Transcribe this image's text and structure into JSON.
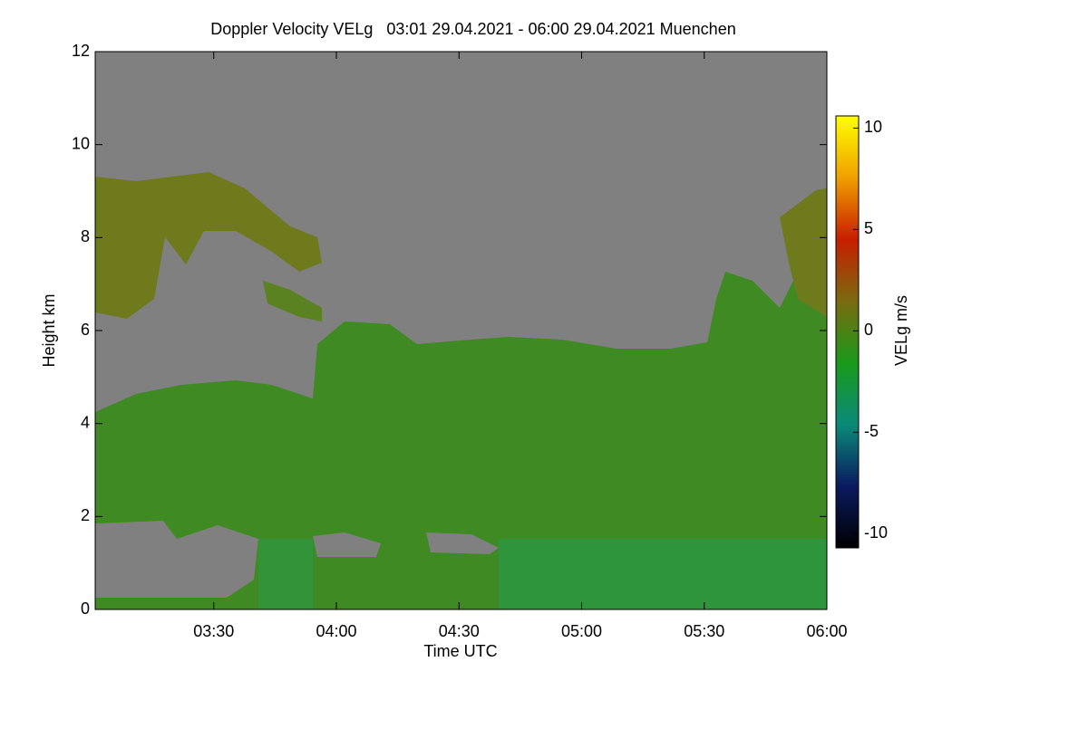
{
  "chart_data": {
    "type": "heatmap",
    "title": "Doppler Velocity VELg   03:01 29.04.2021 - 06:00 29.04.2021 Muenchen",
    "x_label": "Time UTC",
    "y_label": "Height km",
    "colorbar_label": "VELg m/s",
    "xlim": [
      181,
      360
    ],
    "xticks": [
      {
        "value": 210,
        "label": "03:30"
      },
      {
        "value": 240,
        "label": "04:00"
      },
      {
        "value": 270,
        "label": "04:30"
      },
      {
        "value": 300,
        "label": "05:00"
      },
      {
        "value": 330,
        "label": "05:30"
      },
      {
        "value": 360,
        "label": "06:00"
      }
    ],
    "ylim": [
      0,
      12
    ],
    "yticks": [
      0,
      2,
      4,
      6,
      8,
      10,
      12
    ],
    "clim": [
      -10.7,
      10.6
    ],
    "cticks": [
      -10,
      -5,
      0,
      5,
      10
    ],
    "colormap": [
      "#000000",
      "#0a1a60",
      "#0a8a78",
      "#1a9a1a",
      "#7a6a10",
      "#c81e00",
      "#f0a000",
      "#ffff00"
    ]
  }
}
